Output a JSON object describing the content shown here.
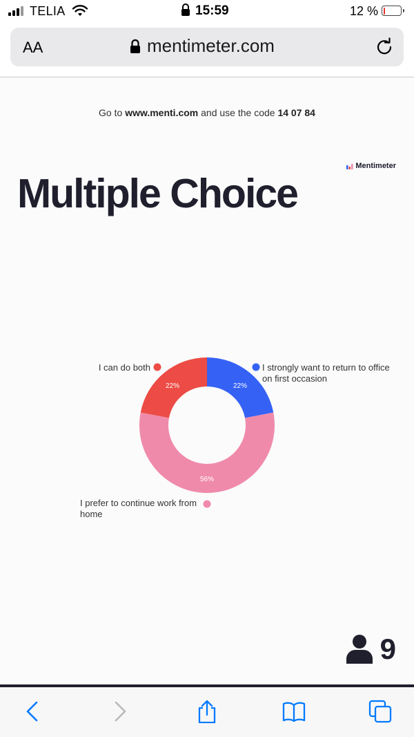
{
  "status_bar": {
    "carrier": "TELIA",
    "time": "15:59",
    "battery": "12 %",
    "battery_level": 0.12
  },
  "browser": {
    "text_size_button": "AA",
    "url": "mentimeter.com"
  },
  "slide": {
    "join_prefix": "Go to",
    "join_site": "www.menti.com",
    "join_middle": "and use the code",
    "join_code": "14 07 84",
    "brand": "Mentimeter",
    "title": "Multiple Choice",
    "participants": "9"
  },
  "chart_data": {
    "type": "pie",
    "donut": true,
    "slices": [
      {
        "label": "I strongly want to return to office on first occasion",
        "value": 22,
        "value_label": "22%",
        "color": "#3562f5"
      },
      {
        "label": "I prefer to continue work from home",
        "value": 56,
        "value_label": "56%",
        "color": "#f08aab"
      },
      {
        "label": "I can do both",
        "value": 22,
        "value_label": "22%",
        "color": "#ec4c45"
      }
    ]
  },
  "colors": {
    "title": "#1f1f2d",
    "accent_link": "#007aff"
  },
  "toolbar": {
    "icons": [
      "back-icon",
      "forward-icon",
      "share-icon",
      "bookmarks-icon",
      "tabs-icon"
    ]
  }
}
